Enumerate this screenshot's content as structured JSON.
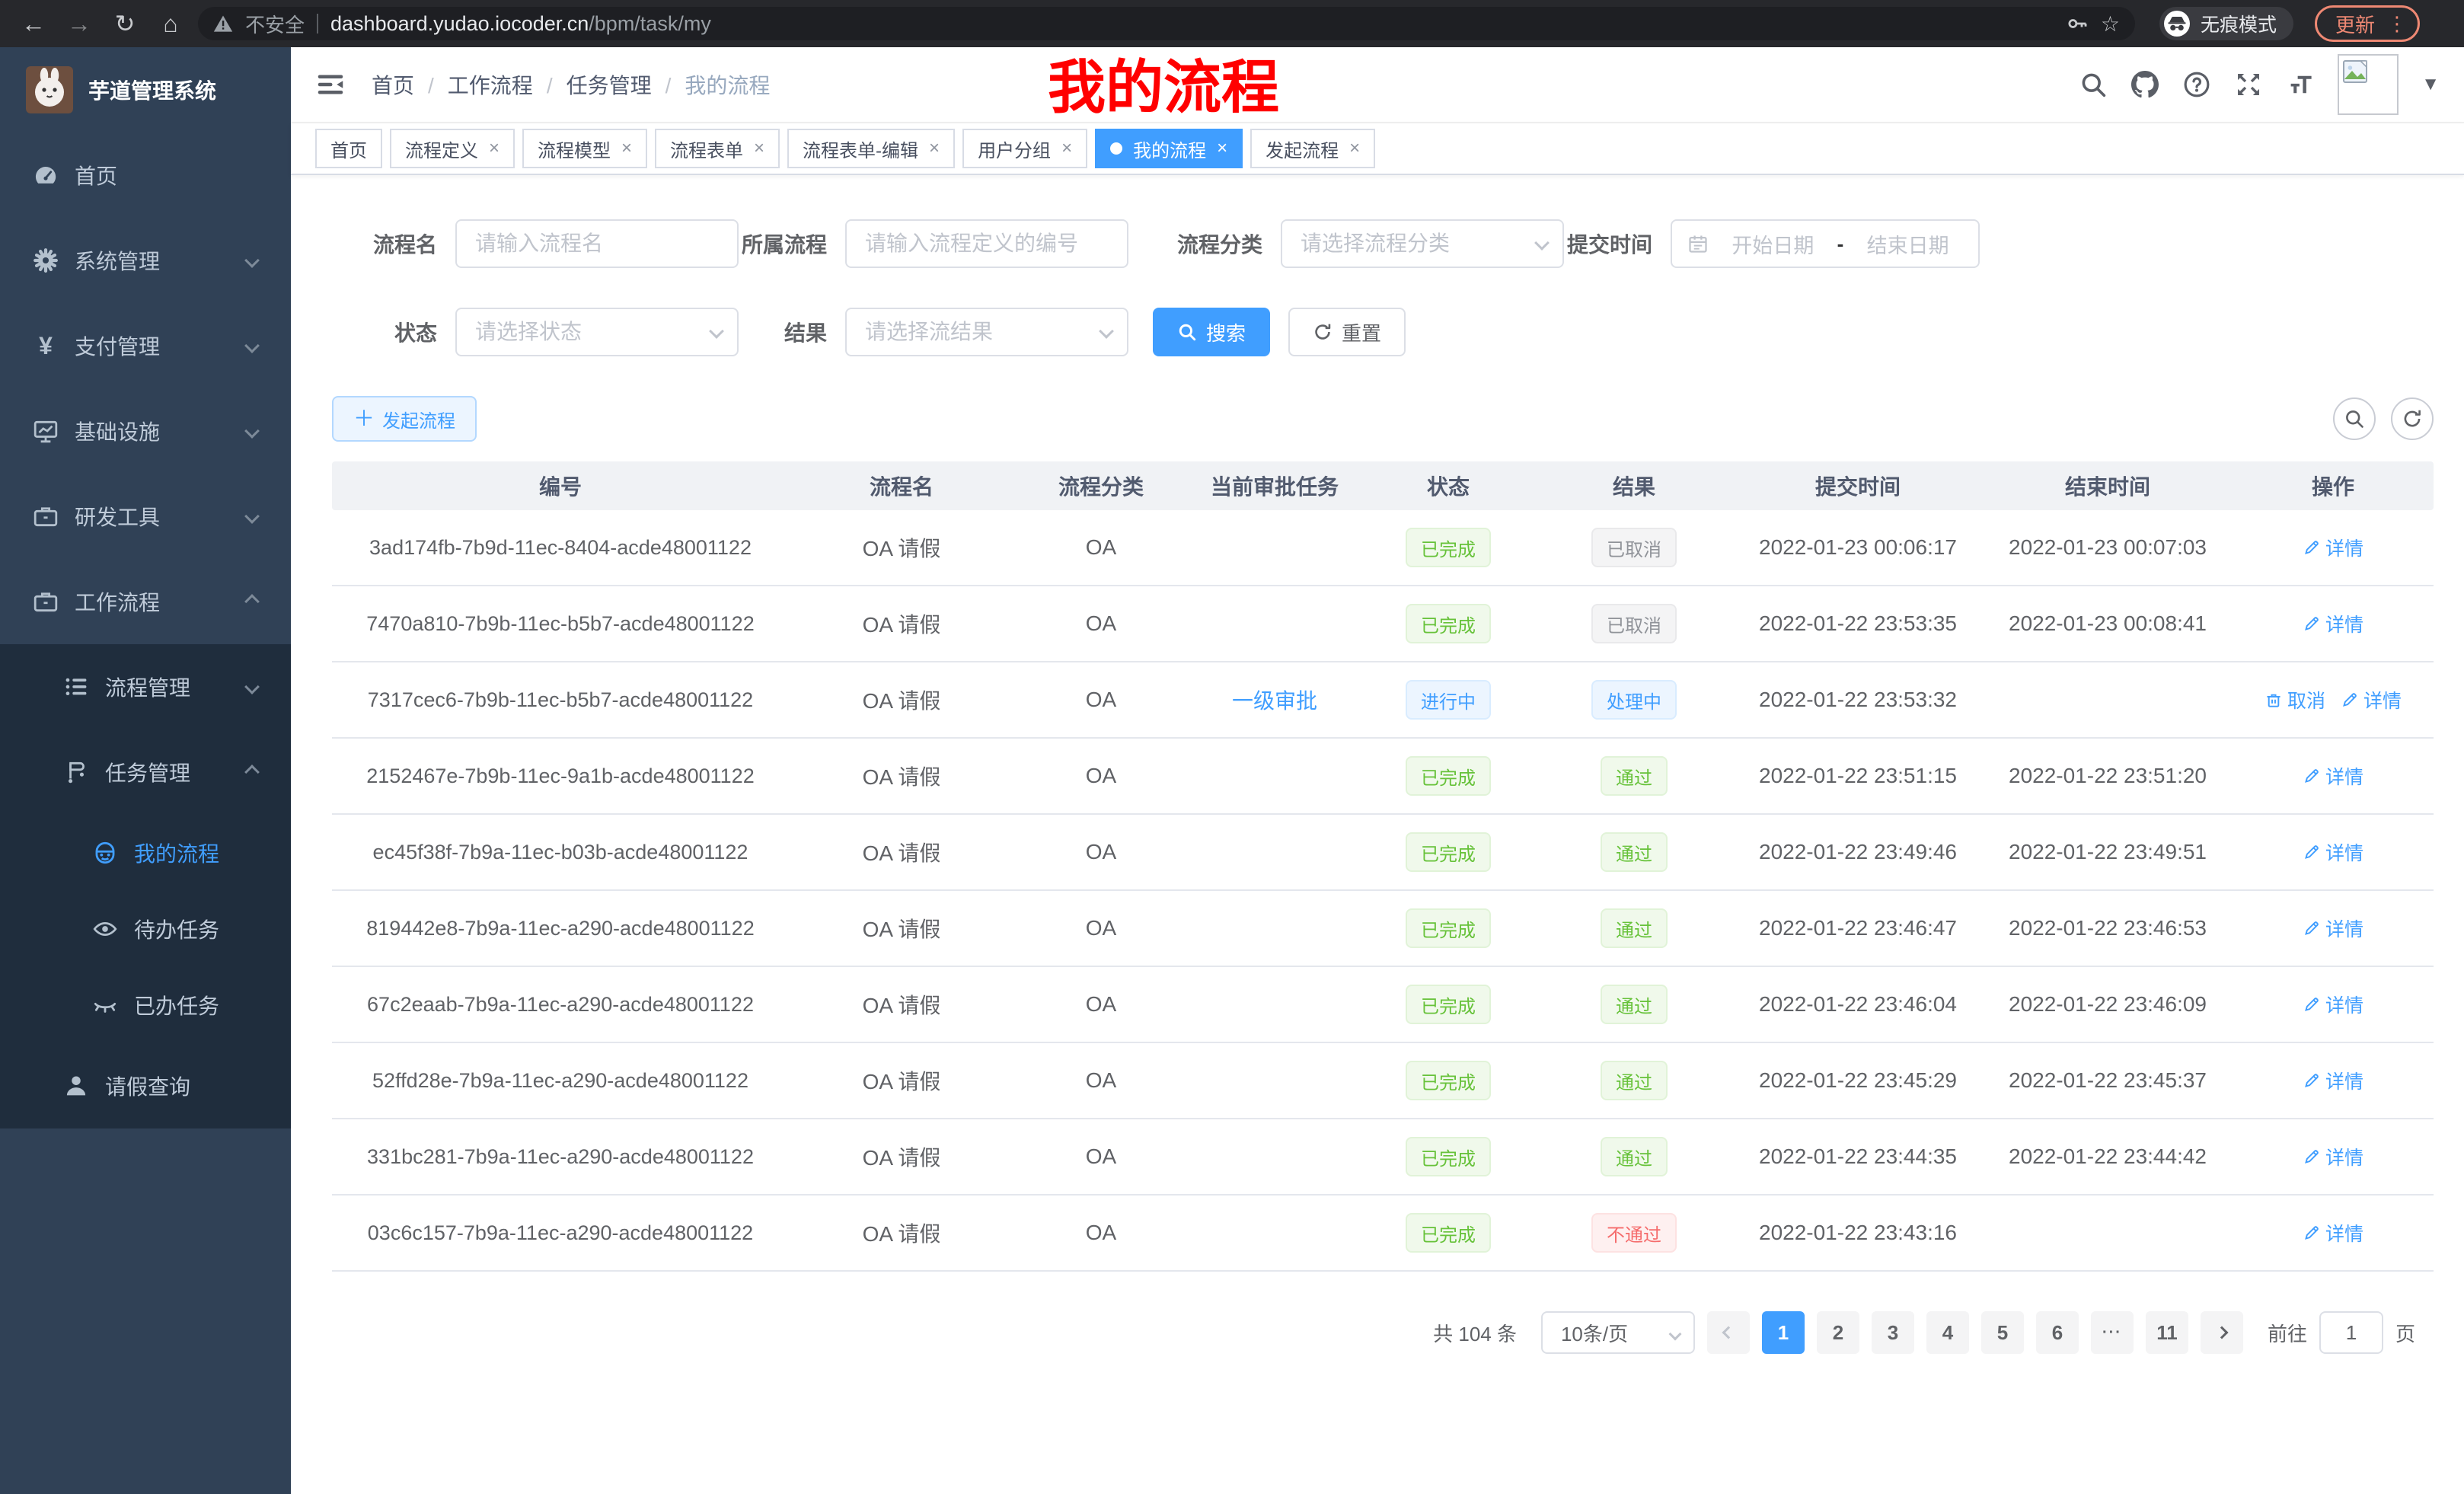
{
  "browser": {
    "security_label": "不安全",
    "url_host": "dashboard.yudao.iocoder.cn",
    "url_path": "/bpm/task/my",
    "incognito_label": "无痕模式",
    "update_label": "更新"
  },
  "annotation": {
    "text": "我的流程",
    "color": "#ff0000"
  },
  "sidebar": {
    "logo_title": "芋道管理系统",
    "items_top": [
      {
        "icon": "gauge",
        "label": "首页",
        "level": "1"
      },
      {
        "icon": "gear",
        "label": "系统管理",
        "level": "1",
        "chevron": "down"
      },
      {
        "icon": "yen",
        "label": "支付管理",
        "level": "1",
        "chevron": "down"
      },
      {
        "icon": "monitor",
        "label": "基础设施",
        "level": "1",
        "chevron": "down"
      },
      {
        "icon": "toolbox",
        "label": "研发工具",
        "level": "1",
        "chevron": "down"
      },
      {
        "icon": "suitcase",
        "label": "工作流程",
        "level": "1",
        "chevron": "up"
      }
    ],
    "items_sub": [
      {
        "icon": "list",
        "label": "流程管理",
        "level": "2",
        "chevron": "down"
      },
      {
        "icon": "flow",
        "label": "任务管理",
        "level": "2",
        "chevron": "up"
      },
      {
        "icon": "robot",
        "label": "我的流程",
        "level": "3",
        "active": true
      },
      {
        "icon": "eye",
        "label": "待办任务",
        "level": "3"
      },
      {
        "icon": "eye-closed",
        "label": "已办任务",
        "level": "3"
      },
      {
        "icon": "user",
        "label": "请假查询",
        "level": "2"
      }
    ]
  },
  "navbar": {
    "breadcrumb": [
      "首页",
      "工作流程",
      "任务管理",
      "我的流程"
    ]
  },
  "tabs": [
    {
      "label": "首页"
    },
    {
      "label": "流程定义",
      "closable": true
    },
    {
      "label": "流程模型",
      "closable": true
    },
    {
      "label": "流程表单",
      "closable": true
    },
    {
      "label": "流程表单-编辑",
      "closable": true
    },
    {
      "label": "用户分组",
      "closable": true
    },
    {
      "label": "我的流程",
      "closable": true,
      "active": true
    },
    {
      "label": "发起流程",
      "closable": true
    }
  ],
  "filters": {
    "name": {
      "label": "流程名",
      "placeholder": "请输入流程名"
    },
    "process": {
      "label": "所属流程",
      "placeholder": "请输入流程定义的编号"
    },
    "category": {
      "label": "流程分类",
      "placeholder": "请选择流程分类"
    },
    "time": {
      "label": "提交时间",
      "start_placeholder": "开始日期",
      "separator": "-",
      "end_placeholder": "结束日期"
    },
    "status": {
      "label": "状态",
      "placeholder": "请选择状态"
    },
    "result": {
      "label": "结果",
      "placeholder": "请选择流结果"
    },
    "search_label": "搜索",
    "reset_label": "重置"
  },
  "toolbar": {
    "create_label": "发起流程"
  },
  "table": {
    "columns": [
      "编号",
      "流程名",
      "流程分类",
      "当前审批任务",
      "状态",
      "结果",
      "提交时间",
      "结束时间",
      "操作"
    ],
    "detail_label": "详情",
    "cancel_label": "取消",
    "rows": [
      {
        "id": "3ad174fb-7b9d-11ec-8404-acde48001122",
        "name": "OA 请假",
        "category": "OA",
        "task": "",
        "status": {
          "label": "已完成",
          "type": "success"
        },
        "result": {
          "label": "已取消",
          "type": "info"
        },
        "submit_time": "2022-01-23 00:06:17",
        "end_time": "2022-01-23 00:07:03",
        "can_cancel": false
      },
      {
        "id": "7470a810-7b9b-11ec-b5b7-acde48001122",
        "name": "OA 请假",
        "category": "OA",
        "task": "",
        "status": {
          "label": "已完成",
          "type": "success"
        },
        "result": {
          "label": "已取消",
          "type": "info"
        },
        "submit_time": "2022-01-22 23:53:35",
        "end_time": "2022-01-23 00:08:41",
        "can_cancel": false
      },
      {
        "id": "7317cec6-7b9b-11ec-b5b7-acde48001122",
        "name": "OA 请假",
        "category": "OA",
        "task": "一级审批",
        "status": {
          "label": "进行中",
          "type": "primary"
        },
        "result": {
          "label": "处理中",
          "type": "primary"
        },
        "submit_time": "2022-01-22 23:53:32",
        "end_time": "",
        "can_cancel": true
      },
      {
        "id": "2152467e-7b9b-11ec-9a1b-acde48001122",
        "name": "OA 请假",
        "category": "OA",
        "task": "",
        "status": {
          "label": "已完成",
          "type": "success"
        },
        "result": {
          "label": "通过",
          "type": "success"
        },
        "submit_time": "2022-01-22 23:51:15",
        "end_time": "2022-01-22 23:51:20",
        "can_cancel": false
      },
      {
        "id": "ec45f38f-7b9a-11ec-b03b-acde48001122",
        "name": "OA 请假",
        "category": "OA",
        "task": "",
        "status": {
          "label": "已完成",
          "type": "success"
        },
        "result": {
          "label": "通过",
          "type": "success"
        },
        "submit_time": "2022-01-22 23:49:46",
        "end_time": "2022-01-22 23:49:51",
        "can_cancel": false
      },
      {
        "id": "819442e8-7b9a-11ec-a290-acde48001122",
        "name": "OA 请假",
        "category": "OA",
        "task": "",
        "status": {
          "label": "已完成",
          "type": "success"
        },
        "result": {
          "label": "通过",
          "type": "success"
        },
        "submit_time": "2022-01-22 23:46:47",
        "end_time": "2022-01-22 23:46:53",
        "can_cancel": false
      },
      {
        "id": "67c2eaab-7b9a-11ec-a290-acde48001122",
        "name": "OA 请假",
        "category": "OA",
        "task": "",
        "status": {
          "label": "已完成",
          "type": "success"
        },
        "result": {
          "label": "通过",
          "type": "success"
        },
        "submit_time": "2022-01-22 23:46:04",
        "end_time": "2022-01-22 23:46:09",
        "can_cancel": false
      },
      {
        "id": "52ffd28e-7b9a-11ec-a290-acde48001122",
        "name": "OA 请假",
        "category": "OA",
        "task": "",
        "status": {
          "label": "已完成",
          "type": "success"
        },
        "result": {
          "label": "通过",
          "type": "success"
        },
        "submit_time": "2022-01-22 23:45:29",
        "end_time": "2022-01-22 23:45:37",
        "can_cancel": false
      },
      {
        "id": "331bc281-7b9a-11ec-a290-acde48001122",
        "name": "OA 请假",
        "category": "OA",
        "task": "",
        "status": {
          "label": "已完成",
          "type": "success"
        },
        "result": {
          "label": "通过",
          "type": "success"
        },
        "submit_time": "2022-01-22 23:44:35",
        "end_time": "2022-01-22 23:44:42",
        "can_cancel": false
      },
      {
        "id": "03c6c157-7b9a-11ec-a290-acde48001122",
        "name": "OA 请假",
        "category": "OA",
        "task": "",
        "status": {
          "label": "已完成",
          "type": "success"
        },
        "result": {
          "label": "不通过",
          "type": "danger"
        },
        "submit_time": "2022-01-22 23:43:16",
        "end_time": "",
        "can_cancel": false
      }
    ]
  },
  "pagination": {
    "total": "共 104 条",
    "page_size": "10条/页",
    "pages": [
      {
        "label": "1",
        "active": true
      },
      {
        "label": "2"
      },
      {
        "label": "3"
      },
      {
        "label": "4"
      },
      {
        "label": "5"
      },
      {
        "label": "6"
      },
      {
        "label": "···",
        "more": true
      },
      {
        "label": "11"
      }
    ],
    "goto_label": "前往",
    "goto_value": "1",
    "goto_unit": "页"
  },
  "colors": {
    "primary": "#409eff",
    "success": "#67c23a",
    "danger": "#f56c6c",
    "info": "#909399",
    "sidebar_bg": "#304156",
    "submenu_bg": "#1f2d3d",
    "annotation_red": "#ff0000"
  }
}
